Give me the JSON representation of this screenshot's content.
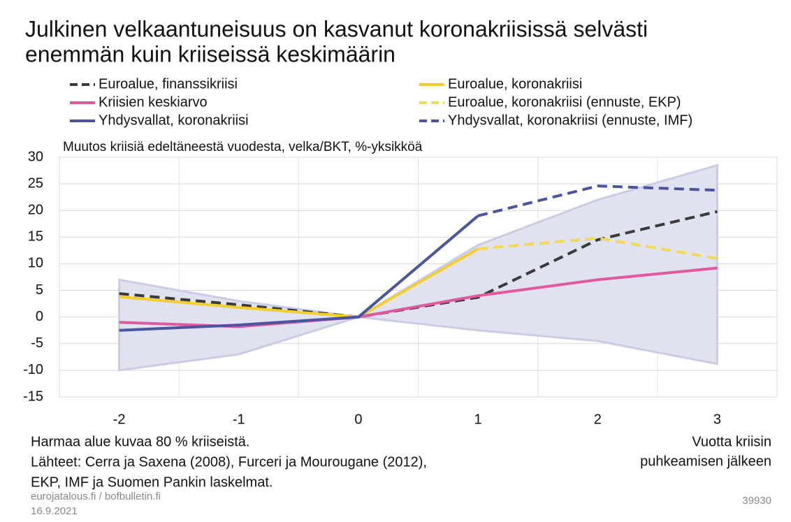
{
  "chart_data": {
    "type": "line",
    "title": [
      "Julkinen velkaantuneisuus on kasvanut koronakriisissä selvästi",
      "enemmän kuin kriiseissä keskimäärin"
    ],
    "subtitle": "Muutos kriisiä edeltäneestä vuodesta, velka/BKT, %-yksikköä",
    "x_label": [
      "Vuotta kriisin",
      "puhkeamisen jälkeen"
    ],
    "x": [
      -2,
      -1,
      0,
      1,
      2,
      3
    ],
    "xlim": [
      -2.5,
      3.5
    ],
    "xticks": [
      -2,
      -1,
      0,
      1,
      2,
      3
    ],
    "ylim": [
      -15,
      30
    ],
    "yticks": [
      -15,
      -10,
      -5,
      0,
      5,
      10,
      15,
      20,
      25,
      30
    ],
    "grid": true,
    "band": {
      "color": "#e1e2f0",
      "edge": "#c9cce4",
      "upper": [
        7,
        3,
        0,
        13.5,
        22,
        28.5
      ],
      "lower": [
        -10,
        -7,
        0,
        -2.5,
        -4.5,
        -8.8
      ]
    },
    "series": [
      {
        "name": "Euroalue, finanssikriisi",
        "color": "#3a3a3a",
        "dash": true,
        "values": [
          4.4,
          2.3,
          0,
          3.7,
          14.5,
          19.8
        ]
      },
      {
        "name": "Euroalue, koronakriisi",
        "color": "#f2cf2e",
        "dash": false,
        "values": [
          3.8,
          1.8,
          0,
          12.8,
          null,
          null
        ]
      },
      {
        "name": "Kriisien keskiarvo",
        "color": "#e2589e",
        "dash": false,
        "values": [
          -1,
          -1.8,
          0,
          4,
          7,
          9.2
        ]
      },
      {
        "name": "Euroalue, koronakriisi (ennuste, EKP)",
        "color": "#f2da55",
        "dash": true,
        "values": [
          null,
          null,
          null,
          12.8,
          14.8,
          11
        ]
      },
      {
        "name": "Yhdysvallat, koronakriisi",
        "color": "#4a54a0",
        "dash": false,
        "values": [
          -2.5,
          -1.5,
          0,
          19,
          null,
          null
        ]
      },
      {
        "name": "Yhdysvallat, koronakriisi (ennuste, IMF)",
        "color": "#4a54a0",
        "dash": true,
        "values": [
          null,
          null,
          null,
          19,
          24.6,
          23.8
        ]
      }
    ],
    "notes": [
      "Harmaa alue kuvaa 80 % kriiseistä.",
      "Lähteet: Cerra ja Saxena (2008), Furceri ja Mourougane (2012),",
      "EKP, IMF ja Suomen Pankin laskelmat."
    ],
    "source": "eurojatalous.fi  / bofbulletin.fi",
    "date": "16.9.2021",
    "id": "39930"
  }
}
